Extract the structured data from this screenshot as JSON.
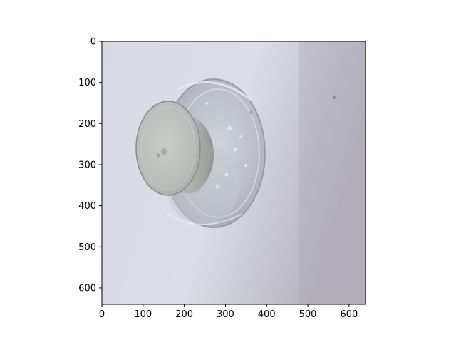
{
  "figure": {
    "background": "#ffffff",
    "axis_color": "#000000",
    "image_subject": "cup-with-lid-photo",
    "x_axis": {
      "ticks": [
        0,
        100,
        200,
        300,
        400,
        500,
        600
      ],
      "tick_labels": [
        "0",
        "100",
        "200",
        "300",
        "400",
        "500",
        "600"
      ],
      "range": [
        0,
        640
      ]
    },
    "y_axis": {
      "ticks": [
        0,
        100,
        200,
        300,
        400,
        500,
        600
      ],
      "tick_labels": [
        "0",
        "100",
        "200",
        "300",
        "400",
        "500",
        "600"
      ],
      "range": [
        0,
        640
      ],
      "inverted": true
    }
  }
}
